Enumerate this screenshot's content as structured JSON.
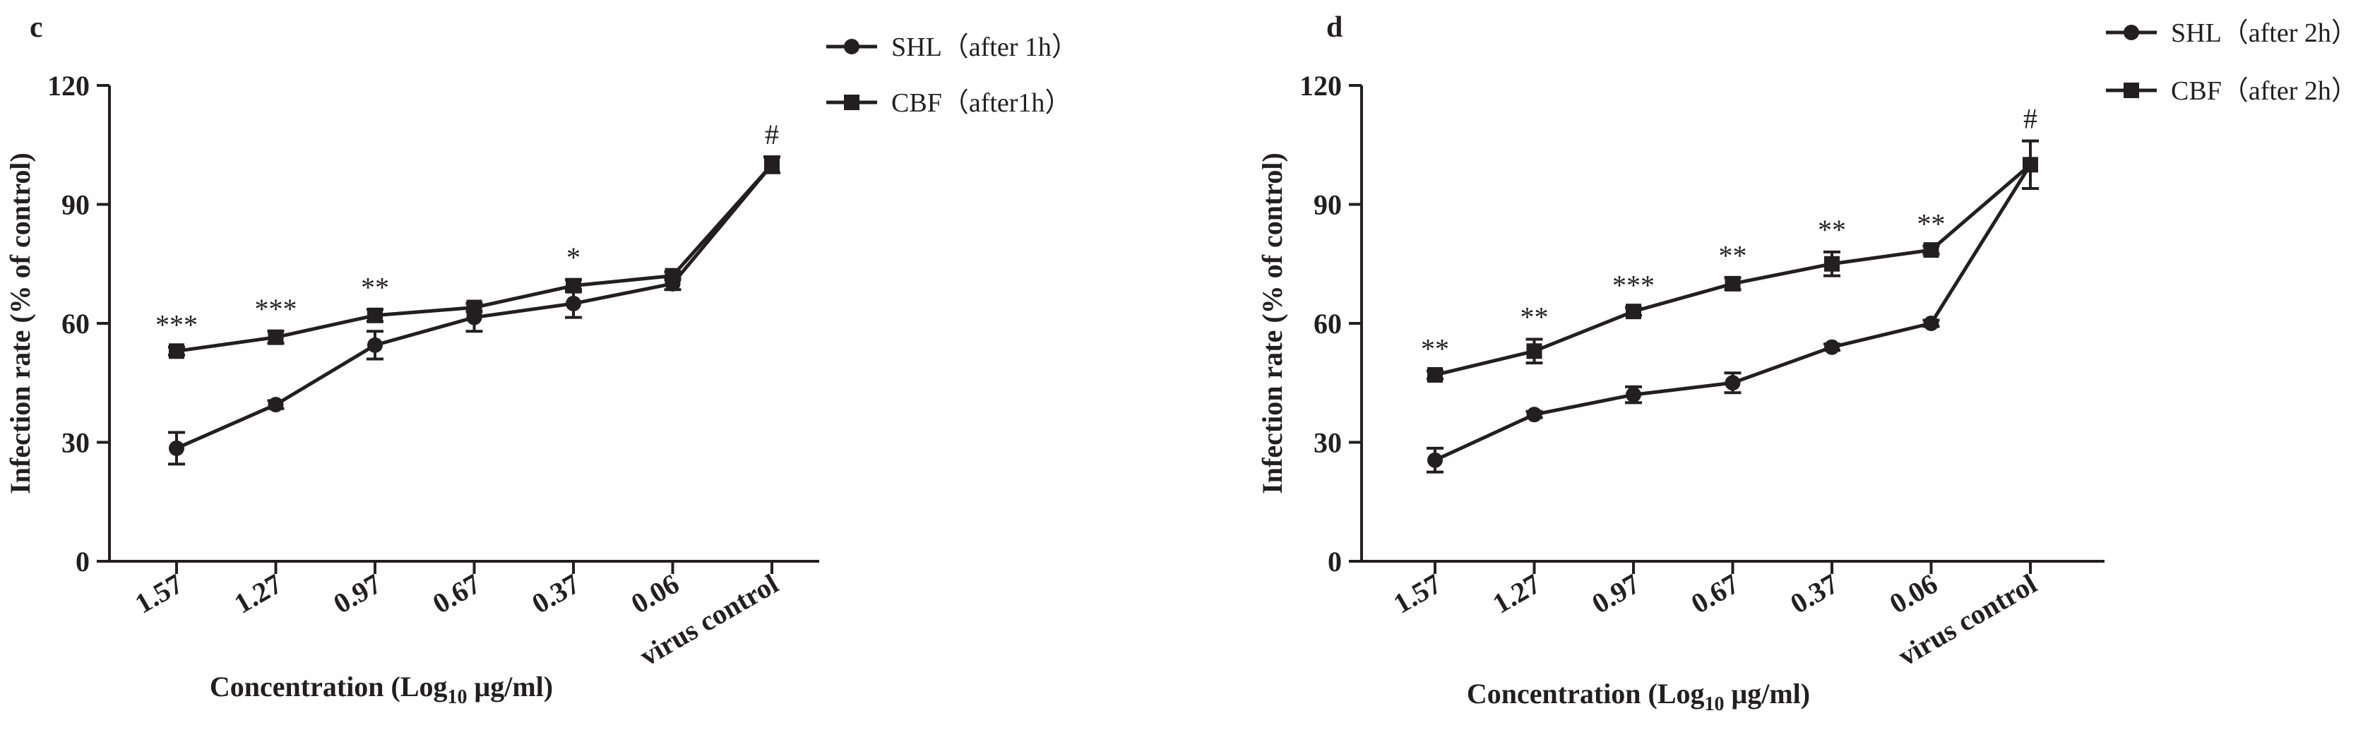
{
  "chart_data": [
    {
      "type": "line",
      "panel_label": "c",
      "ylabel": "Infection rate (% of control)",
      "xlabel": {
        "main": "Concentration (Log",
        "sub": "10",
        "tail": " μg/ml)"
      },
      "categories": [
        "1.57",
        "1.27",
        "0.97",
        "0.67",
        "0.37",
        "0.06",
        "virus control"
      ],
      "yticks": [
        "0",
        "30",
        "60",
        "90",
        "120"
      ],
      "ylim": [
        0,
        120
      ],
      "legend_position": "top-right",
      "series": [
        {
          "name": "SHL（after 1h）",
          "marker": "circle",
          "values": [
            28.5,
            39.5,
            54.5,
            61.5,
            65,
            70,
            100
          ],
          "errors": [
            4,
            1,
            3.5,
            3.5,
            3.5,
            1.5,
            2
          ]
        },
        {
          "name": "CBF（after1h）",
          "marker": "square",
          "values": [
            53,
            56.5,
            62,
            64,
            69.5,
            72,
            100
          ],
          "errors": [
            1,
            1.5,
            1.5,
            1,
            1.5,
            1,
            2
          ]
        }
      ],
      "annotations": [
        "***",
        "***",
        "**",
        "",
        "*",
        "",
        "#"
      ]
    },
    {
      "type": "line",
      "panel_label": "d",
      "ylabel": "Infection rate (% of control)",
      "xlabel": {
        "main": "Concentration (Log",
        "sub": "10",
        "tail": " μg/ml)"
      },
      "categories": [
        "1.57",
        "1.27",
        "0.97",
        "0.67",
        "0.37",
        "0.06",
        "virus control"
      ],
      "yticks": [
        "0",
        "30",
        "60",
        "90",
        "120"
      ],
      "ylim": [
        0,
        120
      ],
      "legend_position": "top-right",
      "series": [
        {
          "name": "SHL（after 2h）",
          "marker": "circle",
          "values": [
            25.5,
            37,
            42,
            45,
            54,
            60,
            100
          ],
          "errors": [
            3,
            0.8,
            2,
            2.5,
            0.8,
            0.8,
            6
          ]
        },
        {
          "name": "CBF（after 2h）",
          "marker": "square",
          "values": [
            47,
            53,
            63,
            70,
            75,
            78.5,
            100
          ],
          "errors": [
            1,
            3,
            1,
            1.5,
            3,
            1,
            6
          ]
        }
      ],
      "annotations": [
        "**",
        "**",
        "***",
        "**",
        "**",
        "**",
        "#"
      ]
    }
  ]
}
